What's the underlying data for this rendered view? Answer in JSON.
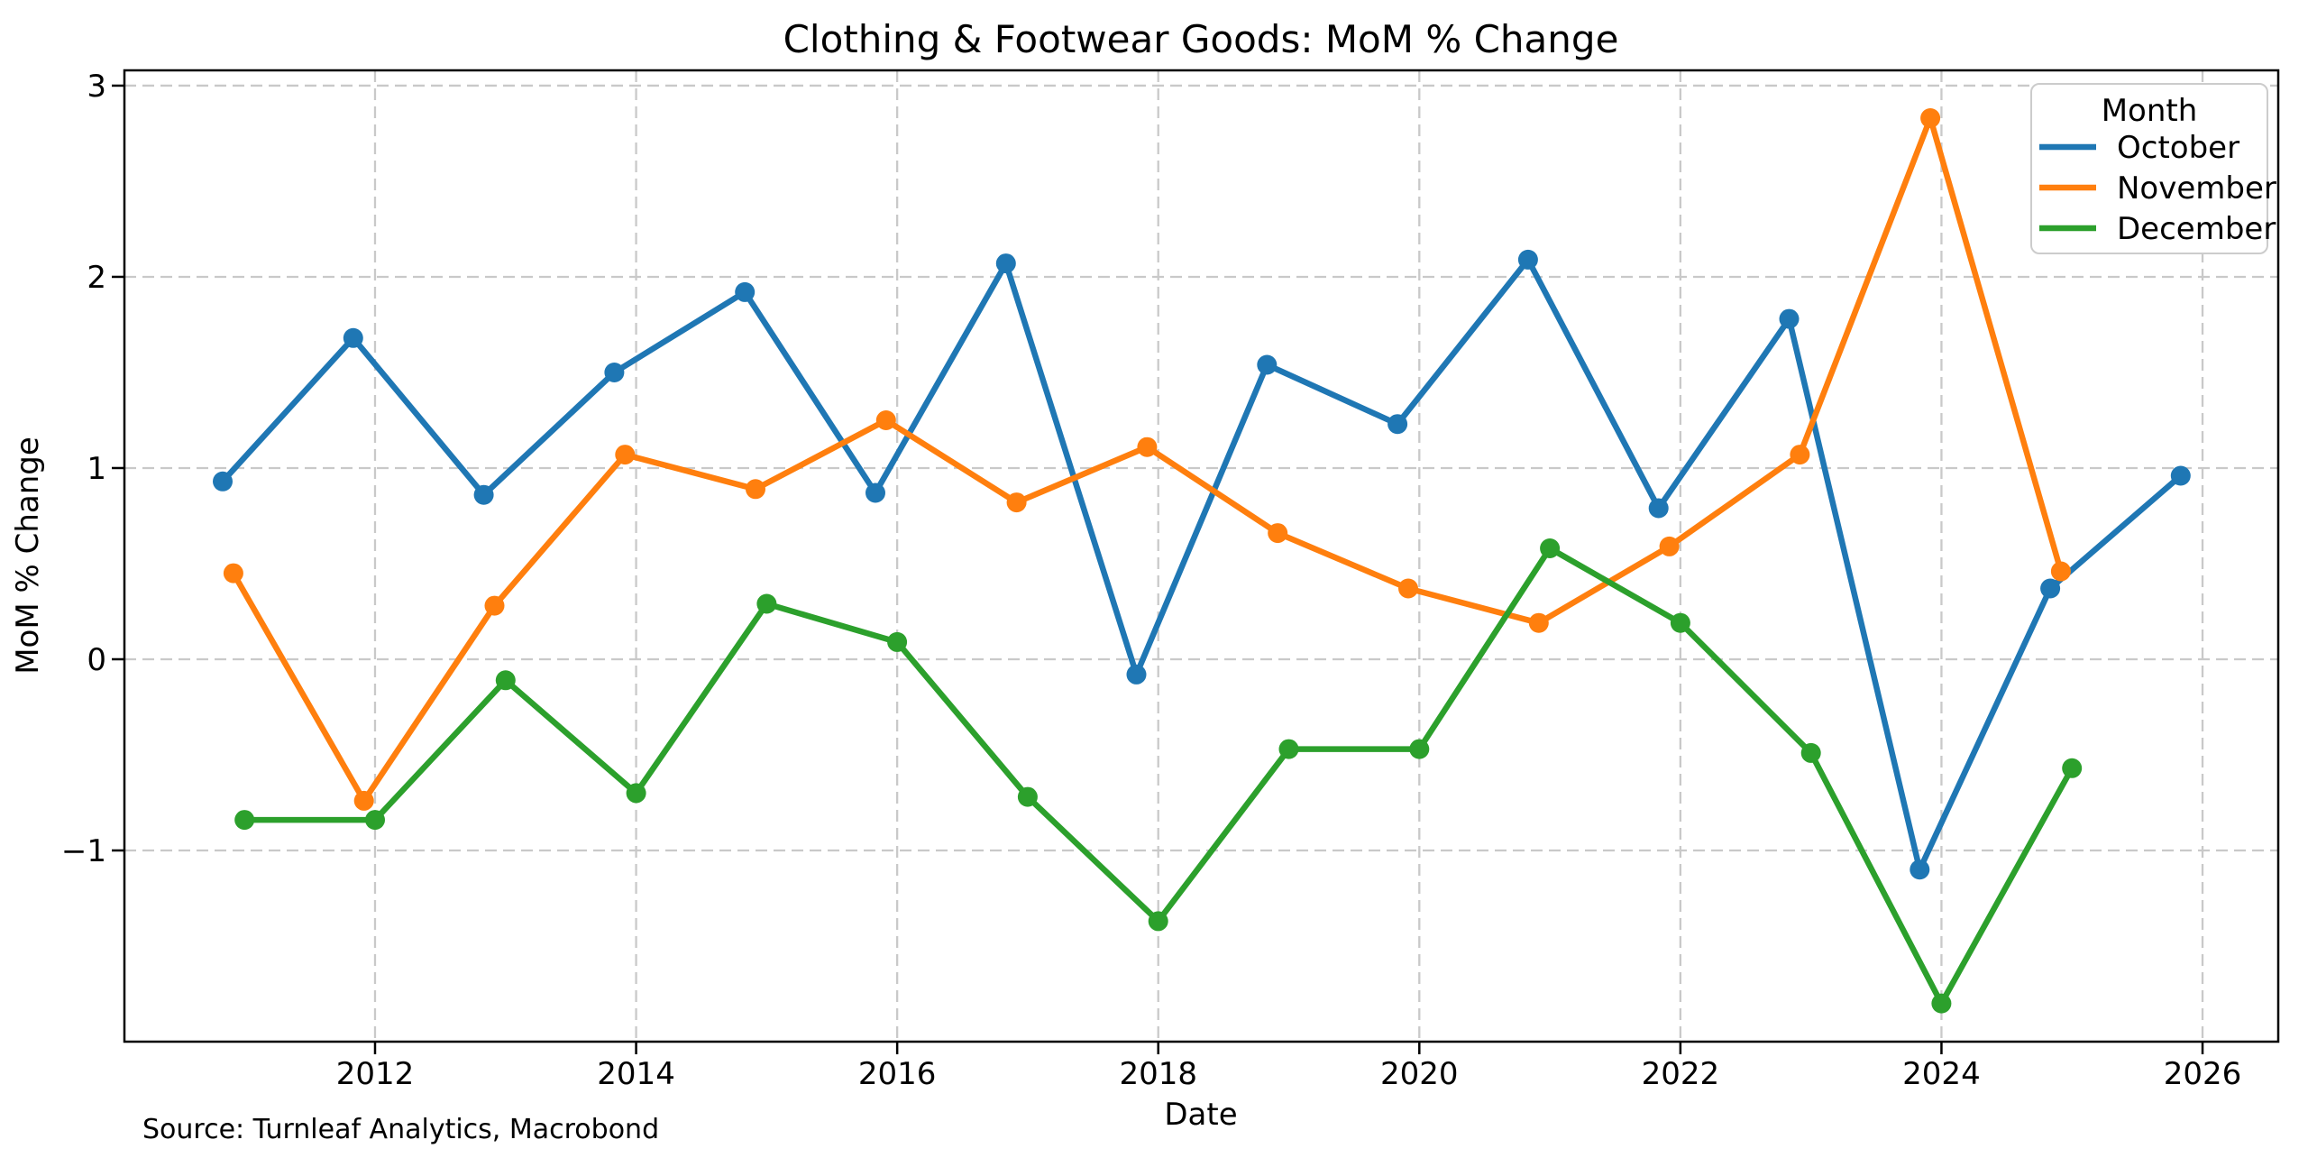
{
  "title": "Clothing & Footwear Goods: MoM % Change",
  "source_note": "Source: Turnleaf Analytics, Macrobond",
  "colors": {
    "october": "#1f77b4",
    "november": "#ff7f0e",
    "december": "#2ca02c",
    "grid": "#c9c9c9",
    "spine": "#000000",
    "legend_border": "#cccccc",
    "background": "#ffffff",
    "text": "#000000"
  },
  "legend": {
    "title": "Month",
    "entries": [
      {
        "label": "October",
        "color": "#1f77b4"
      },
      {
        "label": "November",
        "color": "#ff7f0e"
      },
      {
        "label": "December",
        "color": "#2ca02c"
      }
    ]
  },
  "chart_data": {
    "type": "line",
    "title": "Clothing & Footwear Goods: MoM % Change",
    "xlabel": "Date",
    "ylabel": "MoM % Change",
    "xlim": [
      2010.08,
      2026.58
    ],
    "ylim": [
      -2.0,
      3.08
    ],
    "xticks": [
      2012,
      2014,
      2016,
      2018,
      2020,
      2022,
      2024,
      2026
    ],
    "yticks": [
      -1,
      0,
      1,
      2,
      3
    ],
    "grid": "dashed",
    "legend_position": "upper right",
    "legend_title": "Month",
    "marker": "circle",
    "series": [
      {
        "name": "October",
        "color": "#1f77b4",
        "x_offset": 0.833,
        "years": [
          2010,
          2011,
          2012,
          2013,
          2014,
          2015,
          2016,
          2017,
          2018,
          2019,
          2020,
          2021,
          2022,
          2023,
          2024,
          2025
        ],
        "values": [
          0.93,
          1.68,
          0.86,
          1.5,
          1.92,
          0.87,
          2.07,
          -0.08,
          1.54,
          1.23,
          2.09,
          0.79,
          1.78,
          -1.1,
          0.37,
          0.96
        ]
      },
      {
        "name": "November",
        "color": "#ff7f0e",
        "x_offset": 0.915,
        "years": [
          2010,
          2011,
          2012,
          2013,
          2014,
          2015,
          2016,
          2017,
          2018,
          2019,
          2020,
          2021,
          2022,
          2023,
          2024
        ],
        "values": [
          0.45,
          -0.74,
          0.28,
          1.07,
          0.89,
          1.25,
          0.82,
          1.11,
          0.66,
          0.37,
          0.19,
          0.59,
          1.07,
          2.83,
          0.46
        ]
      },
      {
        "name": "December",
        "color": "#2ca02c",
        "x_offset": 1.0,
        "years": [
          2010,
          2011,
          2012,
          2013,
          2014,
          2015,
          2016,
          2017,
          2018,
          2019,
          2020,
          2021,
          2022,
          2023,
          2024
        ],
        "values": [
          -0.84,
          -0.84,
          -0.11,
          -0.7,
          0.29,
          0.09,
          -0.72,
          -1.37,
          -0.47,
          -0.47,
          0.58,
          0.19,
          -0.49,
          -1.8,
          -0.57
        ]
      }
    ]
  }
}
